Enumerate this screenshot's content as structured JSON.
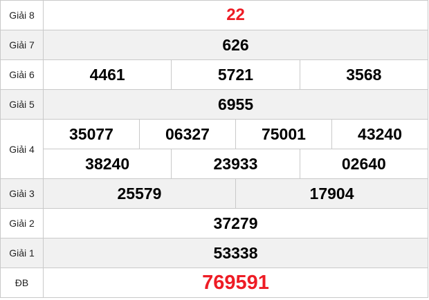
{
  "colors": {
    "red": "#ee1c25",
    "altbg": "#f1f1f1",
    "border": "#c9c9c9"
  },
  "table": {
    "name": "lottery-results",
    "rows": [
      {
        "label": "Giải 8",
        "cells": [
          "22"
        ]
      },
      {
        "label": "Giải 7",
        "cells": [
          "626"
        ]
      },
      {
        "label": "Giải 6",
        "cells": [
          "4461",
          "5721",
          "3568"
        ]
      },
      {
        "label": "Giải 5",
        "cells": [
          "6955"
        ]
      },
      {
        "label": "Giải 4",
        "cells": [
          "35077",
          "06327",
          "75001",
          "43240"
        ],
        "cells2": [
          "38240",
          "23933",
          "02640"
        ]
      },
      {
        "label": "Giải 3",
        "cells": [
          "25579",
          "17904"
        ]
      },
      {
        "label": "Giải 2",
        "cells": [
          "37279"
        ]
      },
      {
        "label": "Giải 1",
        "cells": [
          "53338"
        ]
      },
      {
        "label": "ĐB",
        "cells": [
          "769591"
        ]
      }
    ]
  }
}
